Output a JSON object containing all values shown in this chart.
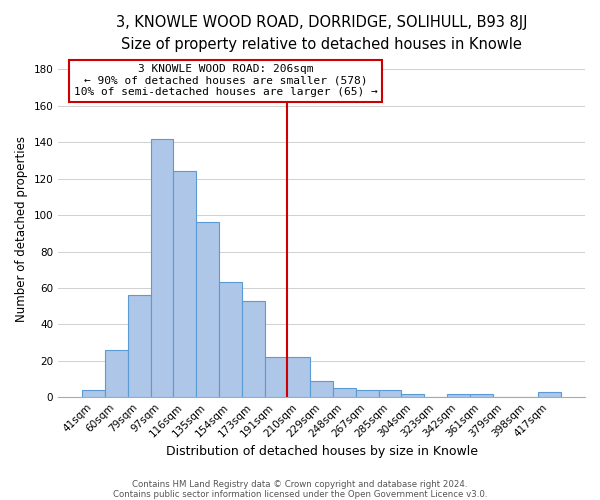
{
  "title1": "3, KNOWLE WOOD ROAD, DORRIDGE, SOLIHULL, B93 8JJ",
  "title2": "Size of property relative to detached houses in Knowle",
  "xlabel": "Distribution of detached houses by size in Knowle",
  "ylabel": "Number of detached properties",
  "bin_labels": [
    "41sqm",
    "60sqm",
    "79sqm",
    "97sqm",
    "116sqm",
    "135sqm",
    "154sqm",
    "173sqm",
    "191sqm",
    "210sqm",
    "229sqm",
    "248sqm",
    "267sqm",
    "285sqm",
    "304sqm",
    "323sqm",
    "342sqm",
    "361sqm",
    "379sqm",
    "398sqm",
    "417sqm"
  ],
  "bar_heights": [
    4,
    26,
    56,
    142,
    124,
    96,
    63,
    53,
    22,
    22,
    9,
    5,
    4,
    4,
    2,
    0,
    2,
    2,
    0,
    0,
    3
  ],
  "bar_color": "#aec6e8",
  "bar_edge_color": "#5b9bd5",
  "vline_index": 9,
  "vline_color": "#cc0000",
  "annotation_title": "3 KNOWLE WOOD ROAD: 206sqm",
  "annotation_line1": "← 90% of detached houses are smaller (578)",
  "annotation_line2": "10% of semi-detached houses are larger (65) →",
  "annotation_box_color": "#ffffff",
  "annotation_box_edge": "#cc0000",
  "ylim": [
    0,
    185
  ],
  "yticks": [
    0,
    20,
    40,
    60,
    80,
    100,
    120,
    140,
    160,
    180
  ],
  "footnote1": "Contains HM Land Registry data © Crown copyright and database right 2024.",
  "footnote2": "Contains public sector information licensed under the Open Government Licence v3.0.",
  "title1_fontsize": 10.5,
  "title2_fontsize": 9.5,
  "xlabel_fontsize": 9,
  "ylabel_fontsize": 8.5,
  "tick_fontsize": 7.5,
  "annotation_fontsize": 8,
  "footnote_fontsize": 6.2
}
